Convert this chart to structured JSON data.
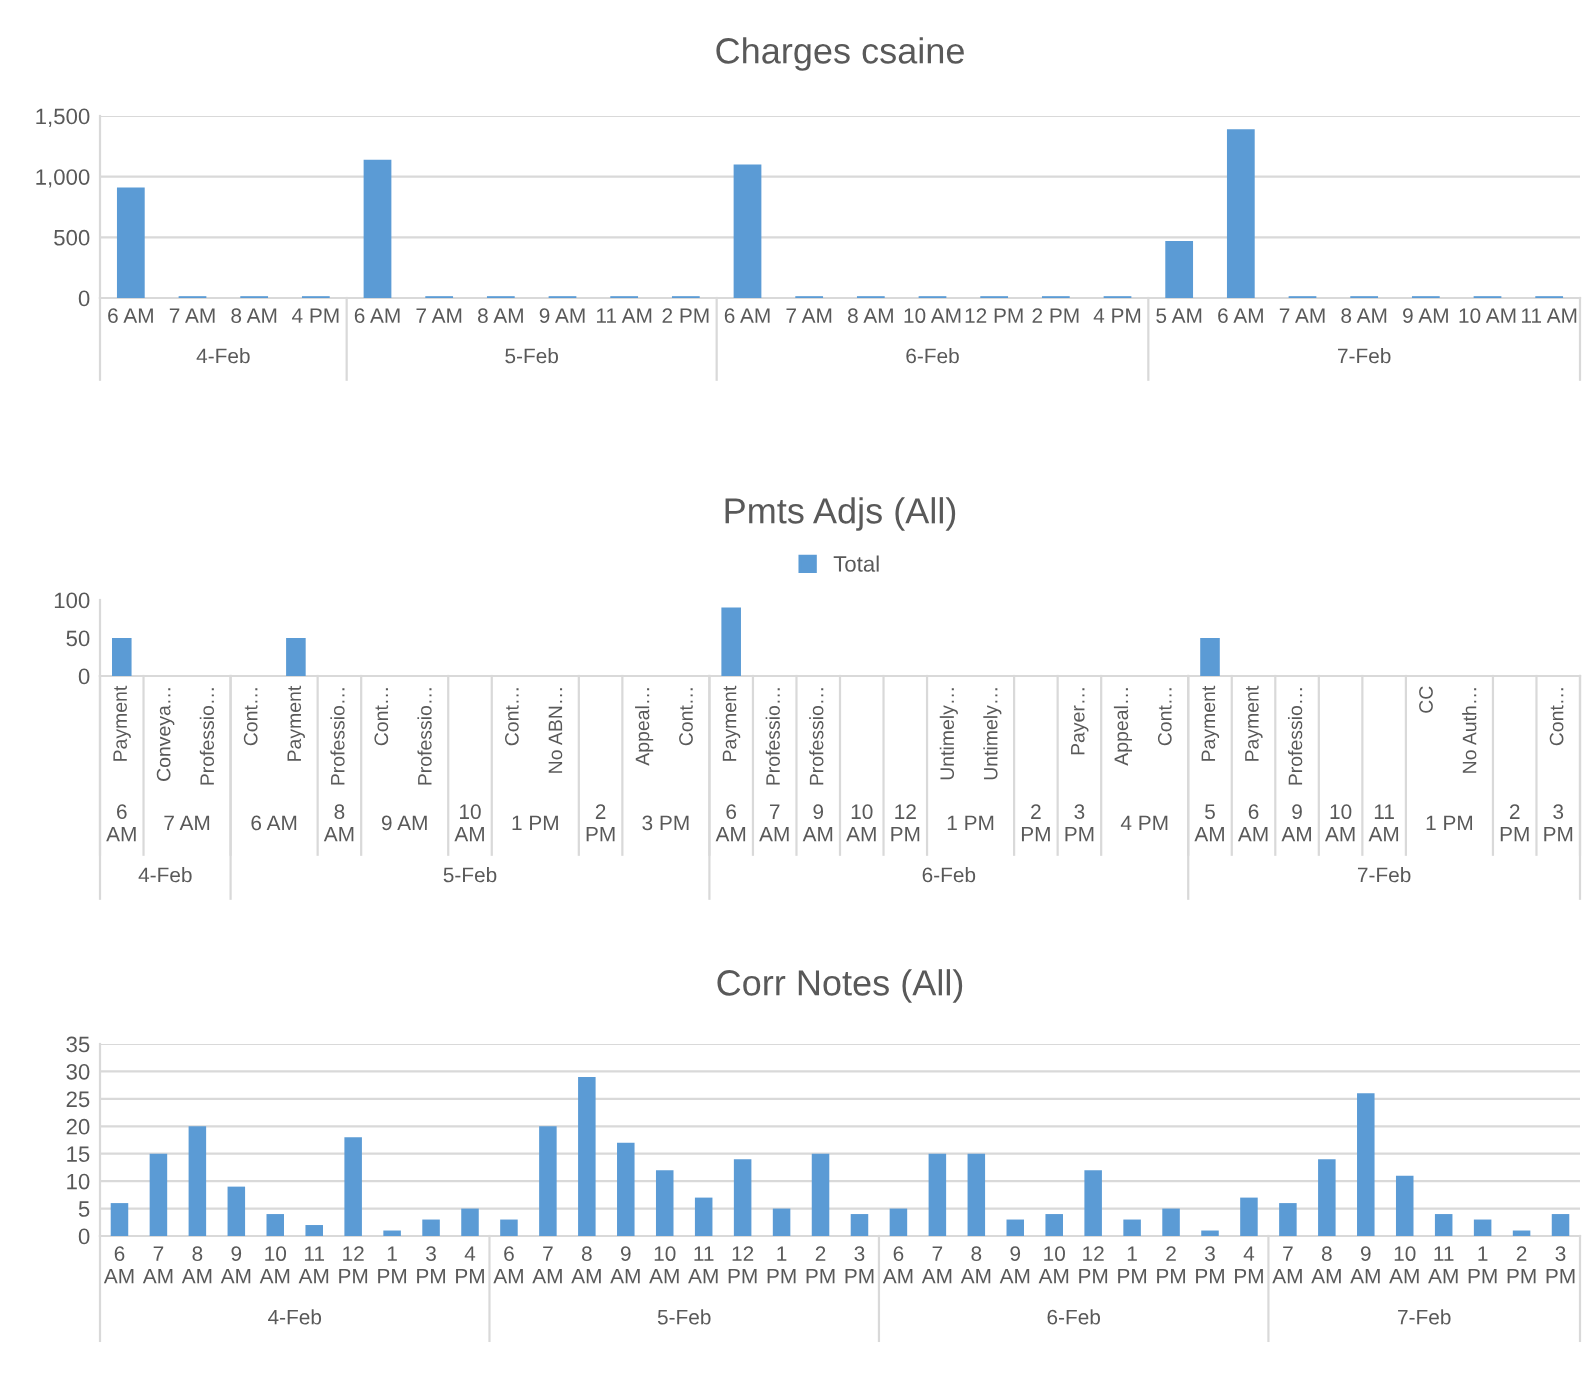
{
  "chart_data": [
    {
      "type": "bar",
      "title": "Charges csaine",
      "categories": [
        "6 AM",
        "7 AM",
        "8 AM",
        "4 PM",
        "6 AM",
        "7 AM",
        "8 AM",
        "9 AM",
        "11 AM",
        "2 PM",
        "6 AM",
        "7 AM",
        "8 AM",
        "10 AM",
        "12 PM",
        "2 PM",
        "4 PM",
        "5 AM",
        "6 AM",
        "7 AM",
        "8 AM",
        "9 AM",
        "10 AM",
        "11 AM"
      ],
      "values": [
        910,
        15,
        15,
        15,
        1140,
        15,
        15,
        15,
        15,
        15,
        1100,
        15,
        15,
        15,
        15,
        15,
        15,
        470,
        1390,
        15,
        15,
        15,
        15,
        15
      ],
      "color": "#5b9bd5",
      "ylim": [
        0,
        1500
      ],
      "yticks": [
        0,
        {
          "value": 500,
          "label": "500"
        },
        {
          "value": 1000,
          "label": "1,000"
        },
        {
          "value": 1500,
          "label": "1,500"
        }
      ],
      "grid": "y",
      "annotations": [
        "4-Feb",
        "5-Feb",
        "6-Feb",
        "7-Feb"
      ]
    },
    {
      "type": "bar",
      "title": "Pmts Adjs (All)",
      "legend": "top",
      "ylim": [
        0,
        100
      ],
      "yticks": [
        0,
        50,
        100
      ],
      "categories": [
        "Payment",
        "Conveya…",
        "Professio…",
        "Cont…",
        "Payment",
        "Professio…",
        "Cont…",
        "Professio…",
        null,
        "Cont…",
        "No ABN…",
        null,
        "Appeal…",
        "Cont…",
        "Payment",
        "Professio…",
        "Professio…",
        null,
        null,
        "Untimely…",
        "Untimely…",
        null,
        "Payer…",
        "Appeal…",
        "Cont…",
        "Payment",
        "Payment",
        "Professio…",
        null,
        null,
        "CC",
        "No Auth…",
        null,
        "Cont…"
      ],
      "series": [
        {
          "name": "Total",
          "color": "#5b9bd5",
          "values": [
            50,
            0,
            0,
            0,
            50,
            0,
            0,
            0,
            0,
            0,
            0,
            0,
            0,
            0,
            90,
            0,
            0,
            0,
            0,
            0,
            0,
            0,
            0,
            0,
            0,
            50,
            0,
            0,
            0,
            0,
            0,
            0,
            0,
            0
          ]
        }
      ],
      "annotations": [
        "6 AM",
        "7 AM",
        "6 AM",
        "8 AM",
        "9 AM",
        "10 AM",
        "1 PM",
        "2 PM",
        "3 PM",
        "6 AM",
        "7 AM",
        "9 AM",
        "10 AM",
        "12 PM",
        "1 PM",
        "2 PM",
        "3 PM",
        "4 PM",
        "5 AM",
        "6 AM",
        "9 AM",
        "10 AM",
        "11 AM",
        "1 PM",
        "2 PM",
        "3 PM",
        "4-Feb",
        "5-Feb",
        "6-Feb",
        "7-Feb"
      ]
    },
    {
      "type": "bar",
      "title": "Corr Notes (All)",
      "categories": [
        "6 AM",
        "7 AM",
        "8 AM",
        "9 AM",
        "10 AM",
        "11 AM",
        "12 PM",
        "1 PM",
        "3 PM",
        "4 PM",
        "6 AM",
        "7 AM",
        "8 AM",
        "9 AM",
        "10 AM",
        "11 AM",
        "12 PM",
        "1 PM",
        "2 PM",
        "3 PM",
        "6 AM",
        "7 AM",
        "8 AM",
        "9 AM",
        "10 AM",
        "12 PM",
        "1 PM",
        "2 PM",
        "3 PM",
        "4 PM",
        "7 AM",
        "8 AM",
        "9 AM",
        "10 AM",
        "11 AM",
        "1 PM",
        "2 PM",
        "3 PM"
      ],
      "values": [
        6,
        15,
        20,
        9,
        4,
        2,
        18,
        1,
        3,
        5,
        3,
        20,
        29,
        17,
        12,
        7,
        14,
        5,
        15,
        4,
        5,
        15,
        15,
        3,
        4,
        12,
        3,
        5,
        1,
        7,
        6,
        14,
        26,
        11,
        4,
        3,
        1,
        4
      ],
      "color": "#5b9bd5",
      "ylim": [
        0,
        35
      ],
      "yticks": [
        0,
        5,
        10,
        15,
        20,
        25,
        30,
        35
      ],
      "grid": "y",
      "annotations": [
        "4-Feb",
        "5-Feb",
        "6-Feb",
        "7-Feb"
      ]
    }
  ]
}
